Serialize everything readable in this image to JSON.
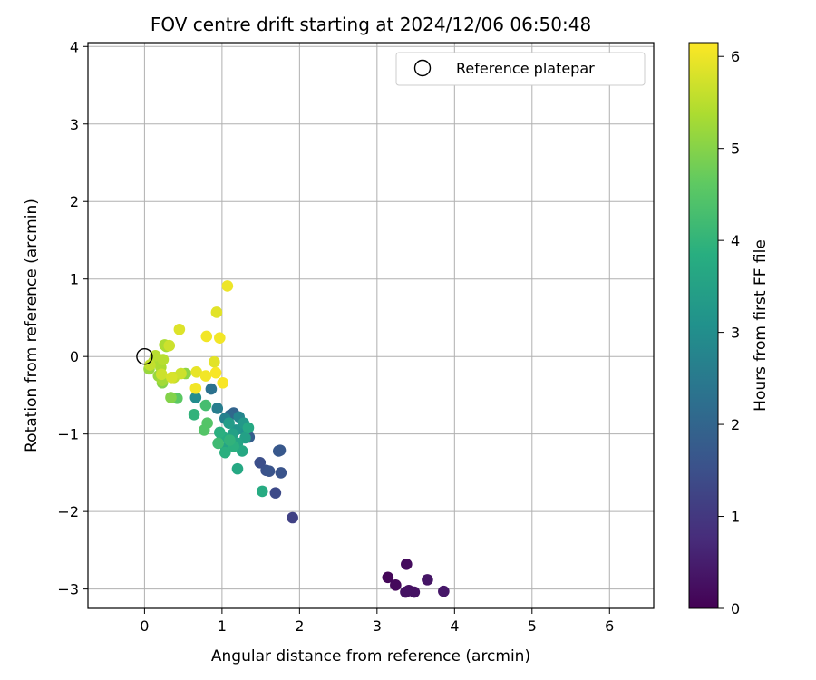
{
  "chart_data": {
    "type": "scatter",
    "title": "FOV centre drift starting at 2024/12/06 06:50:48",
    "xlabel": "Angular distance from reference (arcmin)",
    "ylabel": "Rotation from reference (arcmin)",
    "xlim": [
      -0.73,
      6.57
    ],
    "ylim": [
      -3.25,
      4.05
    ],
    "x_ticks": [
      0,
      1,
      2,
      3,
      4,
      5,
      6
    ],
    "x_tick_labels": [
      "0",
      "1",
      "2",
      "3",
      "4",
      "5",
      "6"
    ],
    "y_ticks": [
      -3,
      -2,
      -1,
      0,
      1,
      2,
      3,
      4
    ],
    "y_tick_labels": [
      "−3",
      "−2",
      "−1",
      "0",
      "1",
      "2",
      "3",
      "4"
    ],
    "grid": true,
    "legend": {
      "position": "top-right",
      "entries": [
        "Reference platepar"
      ]
    },
    "reference_point": {
      "x": 0,
      "y": 0,
      "label": "Reference platepar",
      "marker": "open-circle"
    },
    "colorbar": {
      "label": "Hours from first FF file",
      "range": [
        0,
        6.15
      ],
      "ticks": [
        0,
        1,
        2,
        3,
        4,
        5,
        6
      ],
      "tick_labels": [
        "0",
        "1",
        "2",
        "3",
        "4",
        "5",
        "6"
      ],
      "colormap": "viridis"
    },
    "points": [
      {
        "x": 3.14,
        "y": -2.85,
        "t": 0.1
      },
      {
        "x": 3.24,
        "y": -2.95,
        "t": 0.15
      },
      {
        "x": 3.38,
        "y": -2.68,
        "t": 0.2
      },
      {
        "x": 3.41,
        "y": -3.02,
        "t": 0.25
      },
      {
        "x": 3.48,
        "y": -3.04,
        "t": 0.3
      },
      {
        "x": 3.37,
        "y": -3.04,
        "t": 0.3
      },
      {
        "x": 3.65,
        "y": -2.88,
        "t": 0.35
      },
      {
        "x": 3.86,
        "y": -3.03,
        "t": 0.4
      },
      {
        "x": 1.91,
        "y": -2.08,
        "t": 1.2
      },
      {
        "x": 1.69,
        "y": -1.76,
        "t": 1.4
      },
      {
        "x": 1.49,
        "y": -1.37,
        "t": 1.5
      },
      {
        "x": 1.57,
        "y": -1.47,
        "t": 1.55
      },
      {
        "x": 1.61,
        "y": -1.48,
        "t": 1.6
      },
      {
        "x": 1.76,
        "y": -1.5,
        "t": 1.6
      },
      {
        "x": 1.73,
        "y": -1.22,
        "t": 1.7
      },
      {
        "x": 1.75,
        "y": -1.21,
        "t": 1.7
      },
      {
        "x": 1.35,
        "y": -1.04,
        "t": 1.85
      },
      {
        "x": 1.15,
        "y": -0.73,
        "t": 2.0
      },
      {
        "x": 1.1,
        "y": -0.76,
        "t": 2.1
      },
      {
        "x": 0.86,
        "y": -0.42,
        "t": 2.3
      },
      {
        "x": 0.94,
        "y": -0.67,
        "t": 2.6
      },
      {
        "x": 1.04,
        "y": -0.8,
        "t": 2.7
      },
      {
        "x": 1.22,
        "y": -0.78,
        "t": 2.8
      },
      {
        "x": 0.66,
        "y": -0.53,
        "t": 3.0
      },
      {
        "x": 1.25,
        "y": -0.93,
        "t": 3.1
      },
      {
        "x": 1.18,
        "y": -0.95,
        "t": 3.2
      },
      {
        "x": 1.28,
        "y": -0.86,
        "t": 3.3
      },
      {
        "x": 1.09,
        "y": -0.86,
        "t": 3.4
      },
      {
        "x": 1.3,
        "y": -1.05,
        "t": 3.5
      },
      {
        "x": 1.14,
        "y": -1.0,
        "t": 3.5
      },
      {
        "x": 1.2,
        "y": -1.12,
        "t": 3.6
      },
      {
        "x": 1.05,
        "y": -1.18,
        "t": 3.6
      },
      {
        "x": 1.26,
        "y": -1.22,
        "t": 3.7
      },
      {
        "x": 1.2,
        "y": -1.45,
        "t": 3.7
      },
      {
        "x": 1.34,
        "y": -0.92,
        "t": 3.7
      },
      {
        "x": 1.52,
        "y": -1.74,
        "t": 3.8
      },
      {
        "x": 1.0,
        "y": -1.03,
        "t": 3.8
      },
      {
        "x": 1.15,
        "y": -1.16,
        "t": 3.9
      },
      {
        "x": 1.04,
        "y": -1.24,
        "t": 3.9
      },
      {
        "x": 0.97,
        "y": -0.98,
        "t": 3.9
      },
      {
        "x": 0.64,
        "y": -0.75,
        "t": 4.0
      },
      {
        "x": 1.1,
        "y": -1.08,
        "t": 4.0
      },
      {
        "x": 0.95,
        "y": -1.12,
        "t": 4.2
      },
      {
        "x": 0.79,
        "y": -0.63,
        "t": 4.3
      },
      {
        "x": 0.77,
        "y": -0.95,
        "t": 4.5
      },
      {
        "x": 0.81,
        "y": -0.86,
        "t": 4.5
      },
      {
        "x": 0.42,
        "y": -0.54,
        "t": 4.6
      },
      {
        "x": 0.34,
        "y": -0.53,
        "t": 5.0
      },
      {
        "x": 0.23,
        "y": -0.34,
        "t": 5.0
      },
      {
        "x": 0.53,
        "y": -0.22,
        "t": 5.1
      },
      {
        "x": 0.06,
        "y": -0.16,
        "t": 5.2
      },
      {
        "x": 0.18,
        "y": -0.25,
        "t": 5.2
      },
      {
        "x": 0.23,
        "y": -0.31,
        "t": 5.3
      },
      {
        "x": 0.28,
        "y": 0.13,
        "t": 5.3
      },
      {
        "x": 0.12,
        "y": -0.06,
        "t": 5.4
      },
      {
        "x": 0.21,
        "y": -0.14,
        "t": 5.4
      },
      {
        "x": 0.26,
        "y": 0.15,
        "t": 5.4
      },
      {
        "x": 0.14,
        "y": 0.01,
        "t": 5.5
      },
      {
        "x": 0.24,
        "y": -0.04,
        "t": 5.5
      },
      {
        "x": 0.07,
        "y": -0.11,
        "t": 5.6
      },
      {
        "x": 0.38,
        "y": -0.27,
        "t": 5.6
      },
      {
        "x": 0.32,
        "y": 0.14,
        "t": 5.7
      },
      {
        "x": 0.47,
        "y": -0.22,
        "t": 5.7
      },
      {
        "x": 0.22,
        "y": -0.23,
        "t": 5.7
      },
      {
        "x": 0.35,
        "y": -0.27,
        "t": 5.8
      },
      {
        "x": 0.45,
        "y": 0.35,
        "t": 5.85
      },
      {
        "x": 0.93,
        "y": 0.57,
        "t": 5.9
      },
      {
        "x": 0.9,
        "y": -0.07,
        "t": 5.9
      },
      {
        "x": 0.67,
        "y": -0.2,
        "t": 5.95
      },
      {
        "x": 1.07,
        "y": 0.91,
        "t": 6.0
      },
      {
        "x": 0.8,
        "y": 0.26,
        "t": 6.05
      },
      {
        "x": 0.97,
        "y": 0.24,
        "t": 6.05
      },
      {
        "x": 0.79,
        "y": -0.25,
        "t": 6.05
      },
      {
        "x": 0.66,
        "y": -0.41,
        "t": 6.05
      },
      {
        "x": 0.92,
        "y": -0.21,
        "t": 6.1
      },
      {
        "x": 1.01,
        "y": -0.34,
        "t": 6.1
      }
    ]
  }
}
